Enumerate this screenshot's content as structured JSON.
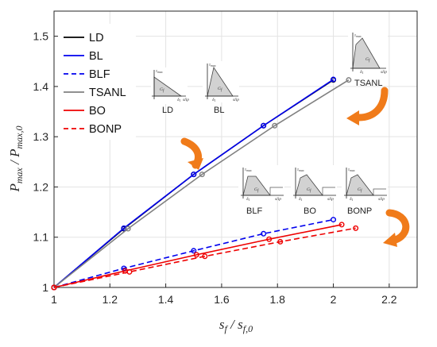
{
  "chart_data": {
    "type": "line",
    "title": "",
    "xlabel_main": "s",
    "xlabel_sub": "f",
    "xlabel_div": " / s",
    "xlabel_sub2": "f,0",
    "ylabel_main": "P",
    "ylabel_sub": "max",
    "ylabel_div": " / P",
    "ylabel_sub2": "max,0",
    "xlim": [
      1,
      2.3
    ],
    "ylim": [
      1,
      1.55
    ],
    "xticks": [
      1,
      1.2,
      1.4,
      1.6,
      1.8,
      2,
      2.2
    ],
    "yticks": [
      1,
      1.1,
      1.2,
      1.3,
      1.4,
      1.5
    ],
    "xtick_labels": [
      "1",
      "1.2",
      "1.4",
      "1.6",
      "1.8",
      "2",
      "2.2"
    ],
    "ytick_labels": [
      "1",
      "1.1",
      "1.2",
      "1.3",
      "1.4",
      "1.5"
    ],
    "grid": true,
    "legend_position": "top-left",
    "series": [
      {
        "name": "LD",
        "color": "#000000",
        "dash": "solid",
        "x": [
          1,
          1.25,
          1.5,
          1.75,
          2.0
        ],
        "y": [
          1,
          1.117,
          1.225,
          1.322,
          1.413
        ]
      },
      {
        "name": "BL",
        "color": "#0000ee",
        "dash": "solid",
        "x": [
          1,
          1.25,
          1.5,
          1.75,
          2.0
        ],
        "y": [
          1,
          1.118,
          1.225,
          1.322,
          1.414
        ]
      },
      {
        "name": "BLF",
        "color": "#0000ee",
        "dash": "dashed",
        "x": [
          1,
          1.25,
          1.5,
          1.75,
          2.0
        ],
        "y": [
          1,
          1.038,
          1.073,
          1.107,
          1.135
        ]
      },
      {
        "name": "TSANL",
        "color": "#808080",
        "dash": "solid",
        "x": [
          1,
          1.265,
          1.53,
          1.79,
          2.055
        ],
        "y": [
          1,
          1.117,
          1.225,
          1.322,
          1.413
        ]
      },
      {
        "name": "BO",
        "color": "#ee0000",
        "dash": "solid",
        "x": [
          1,
          1.255,
          1.51,
          1.77,
          2.03
        ],
        "y": [
          1,
          1.033,
          1.065,
          1.096,
          1.125
        ]
      },
      {
        "name": "BONP",
        "color": "#ee0000",
        "dash": "dashed",
        "x": [
          1,
          1.27,
          1.54,
          1.81,
          2.08
        ],
        "y": [
          1,
          1.031,
          1.062,
          1.091,
          1.118
        ]
      }
    ],
    "insets": {
      "ld": {
        "label": "LD",
        "g": "G",
        "gs": "f",
        "tmax": "τ",
        "tmax_s": "max",
        "d1": "δ",
        "d1s": "1",
        "slip": "slip"
      },
      "bl": {
        "label": "BL",
        "g": "G",
        "gs": "f",
        "tmax": "τ",
        "tmax_s": "max",
        "d1": "δ",
        "d1s": "1",
        "slip": "slip"
      },
      "tsanl": {
        "label": "TSANL",
        "g": "G",
        "gs": "f",
        "tmax": "τ",
        "tmax_s": "max",
        "d1": "δ",
        "d1s": "1",
        "slip": "slip"
      },
      "blf": {
        "label": "BLF",
        "g": "G",
        "gs": "f",
        "tmax": "τ",
        "tmax_s": "max",
        "d1": "δ",
        "d1s": "1",
        "slip": "slip"
      },
      "bo": {
        "label": "BO",
        "g": "G",
        "gs": "f",
        "tmax": "τ",
        "tmax_s": "max",
        "d1": "δ",
        "d1s": "1",
        "slip": "slip"
      },
      "bonp": {
        "label": "BONP",
        "g": "G",
        "gs": "f",
        "tmax": "τ",
        "tmax_s": "max",
        "d1": "δ",
        "d1s": "1",
        "slip": "slip"
      }
    },
    "arrow_color": "#f07b1a"
  }
}
